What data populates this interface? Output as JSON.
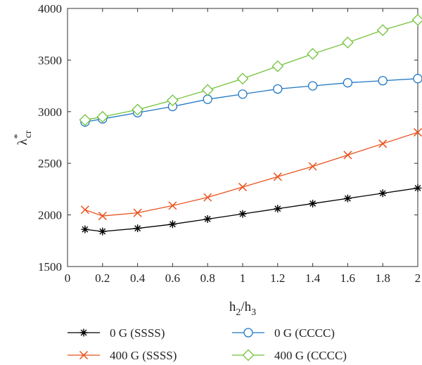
{
  "chart_data": {
    "type": "line",
    "x": [
      0.1,
      0.2,
      0.4,
      0.6,
      0.8,
      1.0,
      1.2,
      1.4,
      1.6,
      1.8,
      2.0
    ],
    "xlim": [
      0,
      2
    ],
    "ylim": [
      1500,
      4000
    ],
    "xticks": [
      "0",
      "0.2",
      "0.4",
      "0.6",
      "0.8",
      "1",
      "1.2",
      "1.4",
      "1.6",
      "1.8",
      "2"
    ],
    "yticks": [
      "1500",
      "2000",
      "2500",
      "3000",
      "3500",
      "4000"
    ],
    "xlabel": {
      "main": "h",
      "sub1": "2",
      "sep": "/h",
      "sub2": "3"
    },
    "ylabel": {
      "main": "λ",
      "sup": "*",
      "sub": "cr"
    },
    "grid": false,
    "legend_position": "bottom",
    "series": [
      {
        "name": "0 G (SSSS)",
        "color": "#000000",
        "marker": "asterisk",
        "values": [
          1860,
          1840,
          1870,
          1910,
          1960,
          2010,
          2060,
          2110,
          2160,
          2210,
          2260
        ]
      },
      {
        "name": "0 G (CCCC)",
        "color": "#1f77c4",
        "marker": "circle",
        "values": [
          2900,
          2930,
          2990,
          3050,
          3120,
          3170,
          3220,
          3250,
          3280,
          3300,
          3320
        ]
      },
      {
        "name": "400 G (SSSS)",
        "color": "#e8531e",
        "marker": "x",
        "values": [
          2050,
          1990,
          2020,
          2090,
          2170,
          2270,
          2370,
          2470,
          2580,
          2690,
          2800
        ]
      },
      {
        "name": "400 G (CCCC)",
        "color": "#72c23a",
        "marker": "diamond",
        "values": [
          2920,
          2950,
          3020,
          3110,
          3210,
          3320,
          3440,
          3560,
          3670,
          3790,
          3890
        ]
      }
    ]
  }
}
